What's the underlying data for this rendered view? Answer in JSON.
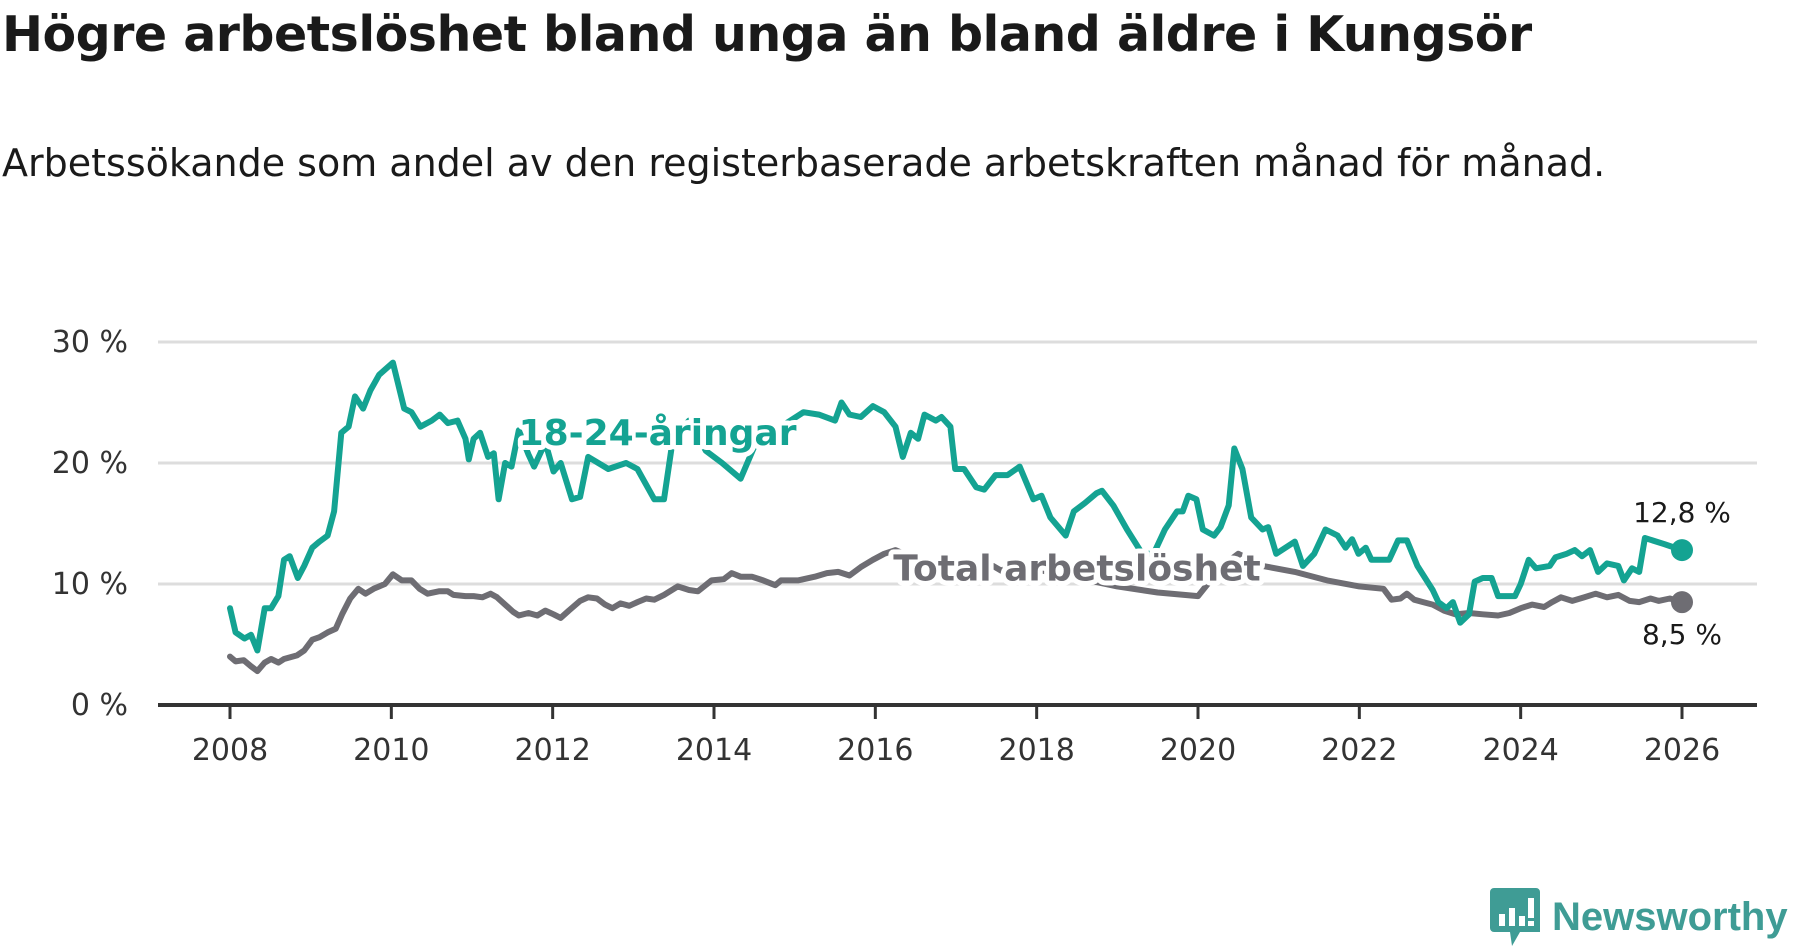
{
  "title": "Högre arbetslöshet bland unga än bland äldre i Kungsör",
  "subtitle": "Arbetssökande som andel av den registerbaserade arbetskraften månad för månad.",
  "logo_text": "Newsworthy",
  "colors": {
    "youth": "#14a392",
    "total": "#6e6d73",
    "grid": "#dddddd",
    "axis": "#333333",
    "logo": "#3f9c95"
  },
  "chart_data": {
    "type": "line",
    "title": "Högre arbetslöshet bland unga än bland äldre i Kungsör",
    "xlabel": "",
    "ylabel": "",
    "xlim": [
      2007.1,
      2027.0
    ],
    "ylim": [
      0,
      30
    ],
    "grid": true,
    "y_ticks": [
      {
        "value": 0,
        "label": "0 %"
      },
      {
        "value": 10,
        "label": "10 %"
      },
      {
        "value": 20,
        "label": "20 %"
      },
      {
        "value": 30,
        "label": "30 %"
      }
    ],
    "x_ticks": [
      {
        "value": 2008,
        "label": "2008"
      },
      {
        "value": 2010,
        "label": "2010"
      },
      {
        "value": 2012,
        "label": "2012"
      },
      {
        "value": 2014,
        "label": "2014"
      },
      {
        "value": 2016,
        "label": "2016"
      },
      {
        "value": 2018,
        "label": "2018"
      },
      {
        "value": 2020,
        "label": "2020"
      },
      {
        "value": 2022,
        "label": "2022"
      },
      {
        "value": 2024,
        "label": "2024"
      },
      {
        "value": 2026,
        "label": "2026"
      }
    ],
    "series": [
      {
        "name": "18-24-åringar",
        "label_at": [
          2013.3,
          21.5
        ],
        "end_label": "12,8 %",
        "points": [
          [
            2008.0,
            8
          ],
          [
            2008.07,
            6
          ],
          [
            2008.18,
            5.5
          ],
          [
            2008.26,
            5.8
          ],
          [
            2008.34,
            4.5
          ],
          [
            2008.43,
            8
          ],
          [
            2008.51,
            8
          ],
          [
            2008.6,
            9
          ],
          [
            2008.67,
            12
          ],
          [
            2008.74,
            12.3
          ],
          [
            2008.84,
            10.5
          ],
          [
            2008.92,
            11.5
          ],
          [
            2009.02,
            13
          ],
          [
            2009.11,
            13.5
          ],
          [
            2009.21,
            14
          ],
          [
            2009.29,
            16
          ],
          [
            2009.38,
            22.5
          ],
          [
            2009.47,
            23
          ],
          [
            2009.55,
            25.5
          ],
          [
            2009.65,
            24.5
          ],
          [
            2009.74,
            26
          ],
          [
            2009.85,
            27.3
          ],
          [
            2010.02,
            28.3
          ],
          [
            2010.16,
            24.5
          ],
          [
            2010.25,
            24.2
          ],
          [
            2010.36,
            23
          ],
          [
            2010.5,
            23.5
          ],
          [
            2010.6,
            24
          ],
          [
            2010.7,
            23.3
          ],
          [
            2010.82,
            23.5
          ],
          [
            2010.92,
            22
          ],
          [
            2010.96,
            20.3
          ],
          [
            2011.02,
            22
          ],
          [
            2011.1,
            22.5
          ],
          [
            2011.2,
            20.5
          ],
          [
            2011.27,
            20.8
          ],
          [
            2011.33,
            17
          ],
          [
            2011.41,
            20
          ],
          [
            2011.49,
            19.7
          ],
          [
            2011.58,
            22.7
          ],
          [
            2011.7,
            20.7
          ],
          [
            2011.77,
            19.7
          ],
          [
            2011.91,
            21.7
          ],
          [
            2012.01,
            19.3
          ],
          [
            2012.1,
            20
          ],
          [
            2012.24,
            17
          ],
          [
            2012.34,
            17.2
          ],
          [
            2012.44,
            20.5
          ],
          [
            2012.69,
            19.5
          ],
          [
            2012.91,
            20
          ],
          [
            2013.05,
            19.5
          ],
          [
            2013.26,
            17
          ],
          [
            2013.38,
            17
          ],
          [
            2013.49,
            22
          ],
          [
            2013.69,
            23.5
          ],
          [
            2013.9,
            21
          ],
          [
            2014.1,
            20
          ],
          [
            2014.33,
            18.7
          ],
          [
            2014.54,
            22
          ],
          [
            2014.83,
            23
          ],
          [
            2015.11,
            24.2
          ],
          [
            2015.3,
            24
          ],
          [
            2015.5,
            23.5
          ],
          [
            2015.58,
            25
          ],
          [
            2015.68,
            24
          ],
          [
            2015.82,
            23.8
          ],
          [
            2015.97,
            24.7
          ],
          [
            2016.11,
            24.2
          ],
          [
            2016.25,
            23
          ],
          [
            2016.34,
            20.5
          ],
          [
            2016.44,
            22.5
          ],
          [
            2016.53,
            22
          ],
          [
            2016.61,
            24
          ],
          [
            2016.75,
            23.5
          ],
          [
            2016.82,
            23.8
          ],
          [
            2016.93,
            23
          ],
          [
            2016.99,
            19.5
          ],
          [
            2017.1,
            19.5
          ],
          [
            2017.25,
            18
          ],
          [
            2017.35,
            17.8
          ],
          [
            2017.49,
            19
          ],
          [
            2017.64,
            19
          ],
          [
            2017.79,
            19.7
          ],
          [
            2017.96,
            17
          ],
          [
            2018.06,
            17.3
          ],
          [
            2018.17,
            15.5
          ],
          [
            2018.36,
            14
          ],
          [
            2018.46,
            16
          ],
          [
            2018.6,
            16.7
          ],
          [
            2018.74,
            17.5
          ],
          [
            2018.81,
            17.7
          ],
          [
            2018.95,
            16.5
          ],
          [
            2019.12,
            14.5
          ],
          [
            2019.31,
            12.5
          ],
          [
            2019.45,
            12.5
          ],
          [
            2019.59,
            14.5
          ],
          [
            2019.74,
            16
          ],
          [
            2019.81,
            16
          ],
          [
            2019.88,
            17.3
          ],
          [
            2019.98,
            17
          ],
          [
            2020.06,
            14.5
          ],
          [
            2020.2,
            14
          ],
          [
            2020.28,
            14.7
          ],
          [
            2020.38,
            16.5
          ],
          [
            2020.45,
            21.2
          ],
          [
            2020.55,
            19.5
          ],
          [
            2020.66,
            15.5
          ],
          [
            2020.8,
            14.5
          ],
          [
            2020.87,
            14.7
          ],
          [
            2020.97,
            12.5
          ],
          [
            2021.2,
            13.5
          ],
          [
            2021.3,
            11.5
          ],
          [
            2021.44,
            12.5
          ],
          [
            2021.58,
            14.5
          ],
          [
            2021.73,
            14
          ],
          [
            2021.83,
            13
          ],
          [
            2021.91,
            13.7
          ],
          [
            2021.99,
            12.5
          ],
          [
            2022.08,
            13
          ],
          [
            2022.15,
            12
          ],
          [
            2022.37,
            12
          ],
          [
            2022.48,
            13.6
          ],
          [
            2022.59,
            13.6
          ],
          [
            2022.72,
            11.5
          ],
          [
            2022.91,
            9.5
          ],
          [
            2022.98,
            8.5
          ],
          [
            2023.08,
            8
          ],
          [
            2023.16,
            8.5
          ],
          [
            2023.25,
            6.8
          ],
          [
            2023.36,
            7.5
          ],
          [
            2023.43,
            10.2
          ],
          [
            2023.53,
            10.5
          ],
          [
            2023.64,
            10.5
          ],
          [
            2023.72,
            9
          ],
          [
            2023.93,
            9
          ],
          [
            2024.0,
            10
          ],
          [
            2024.1,
            12
          ],
          [
            2024.19,
            11.3
          ],
          [
            2024.36,
            11.5
          ],
          [
            2024.43,
            12.2
          ],
          [
            2024.57,
            12.5
          ],
          [
            2024.67,
            12.8
          ],
          [
            2024.76,
            12.3
          ],
          [
            2024.86,
            12.8
          ],
          [
            2024.96,
            11
          ],
          [
            2025.07,
            11.7
          ],
          [
            2025.21,
            11.5
          ],
          [
            2025.28,
            10.3
          ],
          [
            2025.38,
            11.3
          ],
          [
            2025.47,
            11
          ],
          [
            2025.54,
            13.8
          ],
          [
            2025.78,
            13.3
          ],
          [
            2026.0,
            12.8
          ]
        ]
      },
      {
        "name": "Total arbetslöshet",
        "label_at": [
          2018.5,
          10.3
        ],
        "end_label": "8,5 %",
        "points": [
          [
            2008.0,
            4
          ],
          [
            2008.07,
            3.6
          ],
          [
            2008.17,
            3.7
          ],
          [
            2008.26,
            3.2
          ],
          [
            2008.34,
            2.8
          ],
          [
            2008.43,
            3.5
          ],
          [
            2008.51,
            3.8
          ],
          [
            2008.6,
            3.5
          ],
          [
            2008.67,
            3.8
          ],
          [
            2008.83,
            4.1
          ],
          [
            2008.92,
            4.5
          ],
          [
            2009.02,
            5.4
          ],
          [
            2009.11,
            5.6
          ],
          [
            2009.21,
            6
          ],
          [
            2009.31,
            6.3
          ],
          [
            2009.39,
            7.5
          ],
          [
            2009.49,
            8.8
          ],
          [
            2009.59,
            9.6
          ],
          [
            2009.68,
            9.2
          ],
          [
            2009.78,
            9.6
          ],
          [
            2009.92,
            10
          ],
          [
            2010.02,
            10.8
          ],
          [
            2010.13,
            10.3
          ],
          [
            2010.25,
            10.3
          ],
          [
            2010.35,
            9.6
          ],
          [
            2010.45,
            9.2
          ],
          [
            2010.59,
            9.4
          ],
          [
            2010.7,
            9.4
          ],
          [
            2010.77,
            9.1
          ],
          [
            2010.92,
            9
          ],
          [
            2011.02,
            9
          ],
          [
            2011.13,
            8.9
          ],
          [
            2011.23,
            9.2
          ],
          [
            2011.31,
            8.9
          ],
          [
            2011.41,
            8.3
          ],
          [
            2011.51,
            7.7
          ],
          [
            2011.58,
            7.4
          ],
          [
            2011.7,
            7.6
          ],
          [
            2011.81,
            7.4
          ],
          [
            2011.91,
            7.8
          ],
          [
            2012.01,
            7.5
          ],
          [
            2012.1,
            7.2
          ],
          [
            2012.2,
            7.8
          ],
          [
            2012.34,
            8.6
          ],
          [
            2012.44,
            8.9
          ],
          [
            2012.55,
            8.8
          ],
          [
            2012.65,
            8.3
          ],
          [
            2012.74,
            8
          ],
          [
            2012.84,
            8.4
          ],
          [
            2012.95,
            8.2
          ],
          [
            2013.05,
            8.5
          ],
          [
            2013.16,
            8.8
          ],
          [
            2013.26,
            8.7
          ],
          [
            2013.38,
            9.1
          ],
          [
            2013.55,
            9.8
          ],
          [
            2013.69,
            9.5
          ],
          [
            2013.8,
            9.4
          ],
          [
            2013.97,
            10.3
          ],
          [
            2014.12,
            10.4
          ],
          [
            2014.22,
            10.9
          ],
          [
            2014.33,
            10.6
          ],
          [
            2014.47,
            10.6
          ],
          [
            2014.61,
            10.3
          ],
          [
            2014.76,
            9.9
          ],
          [
            2014.83,
            10.3
          ],
          [
            2015.04,
            10.3
          ],
          [
            2015.25,
            10.6
          ],
          [
            2015.4,
            10.9
          ],
          [
            2015.54,
            11
          ],
          [
            2015.68,
            10.7
          ],
          [
            2015.82,
            11.4
          ],
          [
            2015.97,
            12
          ],
          [
            2016.11,
            12.5
          ],
          [
            2016.25,
            12.8
          ],
          [
            2016.39,
            12.4
          ],
          [
            2016.53,
            12.2
          ],
          [
            2016.68,
            11.8
          ],
          [
            2016.82,
            11.9
          ],
          [
            2016.96,
            11.8
          ],
          [
            2017.1,
            11.8
          ],
          [
            2017.25,
            11.6
          ],
          [
            2017.36,
            11.6
          ],
          [
            2017.46,
            11.5
          ],
          [
            2017.56,
            11.1
          ],
          [
            2017.67,
            11.5
          ],
          [
            2018.0,
            11.2
          ],
          [
            2018.5,
            10.5
          ],
          [
            2019.0,
            9.8
          ],
          [
            2019.5,
            9.3
          ],
          [
            2020.0,
            9.0
          ],
          [
            2020.3,
            11.5
          ],
          [
            2020.5,
            12.5
          ],
          [
            2020.8,
            11.5
          ],
          [
            2021.2,
            11
          ],
          [
            2021.6,
            10.3
          ],
          [
            2022.0,
            9.8
          ],
          [
            2022.3,
            9.6
          ],
          [
            2022.4,
            8.7
          ],
          [
            2022.51,
            8.8
          ],
          [
            2022.59,
            9.2
          ],
          [
            2022.68,
            8.7
          ],
          [
            2022.79,
            8.5
          ],
          [
            2022.91,
            8.3
          ],
          [
            2023.05,
            7.8
          ],
          [
            2023.19,
            7.5
          ],
          [
            2023.36,
            7.6
          ],
          [
            2023.53,
            7.5
          ],
          [
            2023.72,
            7.4
          ],
          [
            2023.86,
            7.6
          ],
          [
            2024.0,
            8
          ],
          [
            2024.14,
            8.3
          ],
          [
            2024.29,
            8.1
          ],
          [
            2024.39,
            8.5
          ],
          [
            2024.5,
            8.9
          ],
          [
            2024.64,
            8.6
          ],
          [
            2024.79,
            8.9
          ],
          [
            2024.93,
            9.2
          ],
          [
            2025.07,
            8.9
          ],
          [
            2025.21,
            9.1
          ],
          [
            2025.35,
            8.6
          ],
          [
            2025.47,
            8.5
          ],
          [
            2025.61,
            8.8
          ],
          [
            2025.71,
            8.6
          ],
          [
            2025.85,
            8.8
          ],
          [
            2026.0,
            8.5
          ]
        ]
      }
    ]
  }
}
